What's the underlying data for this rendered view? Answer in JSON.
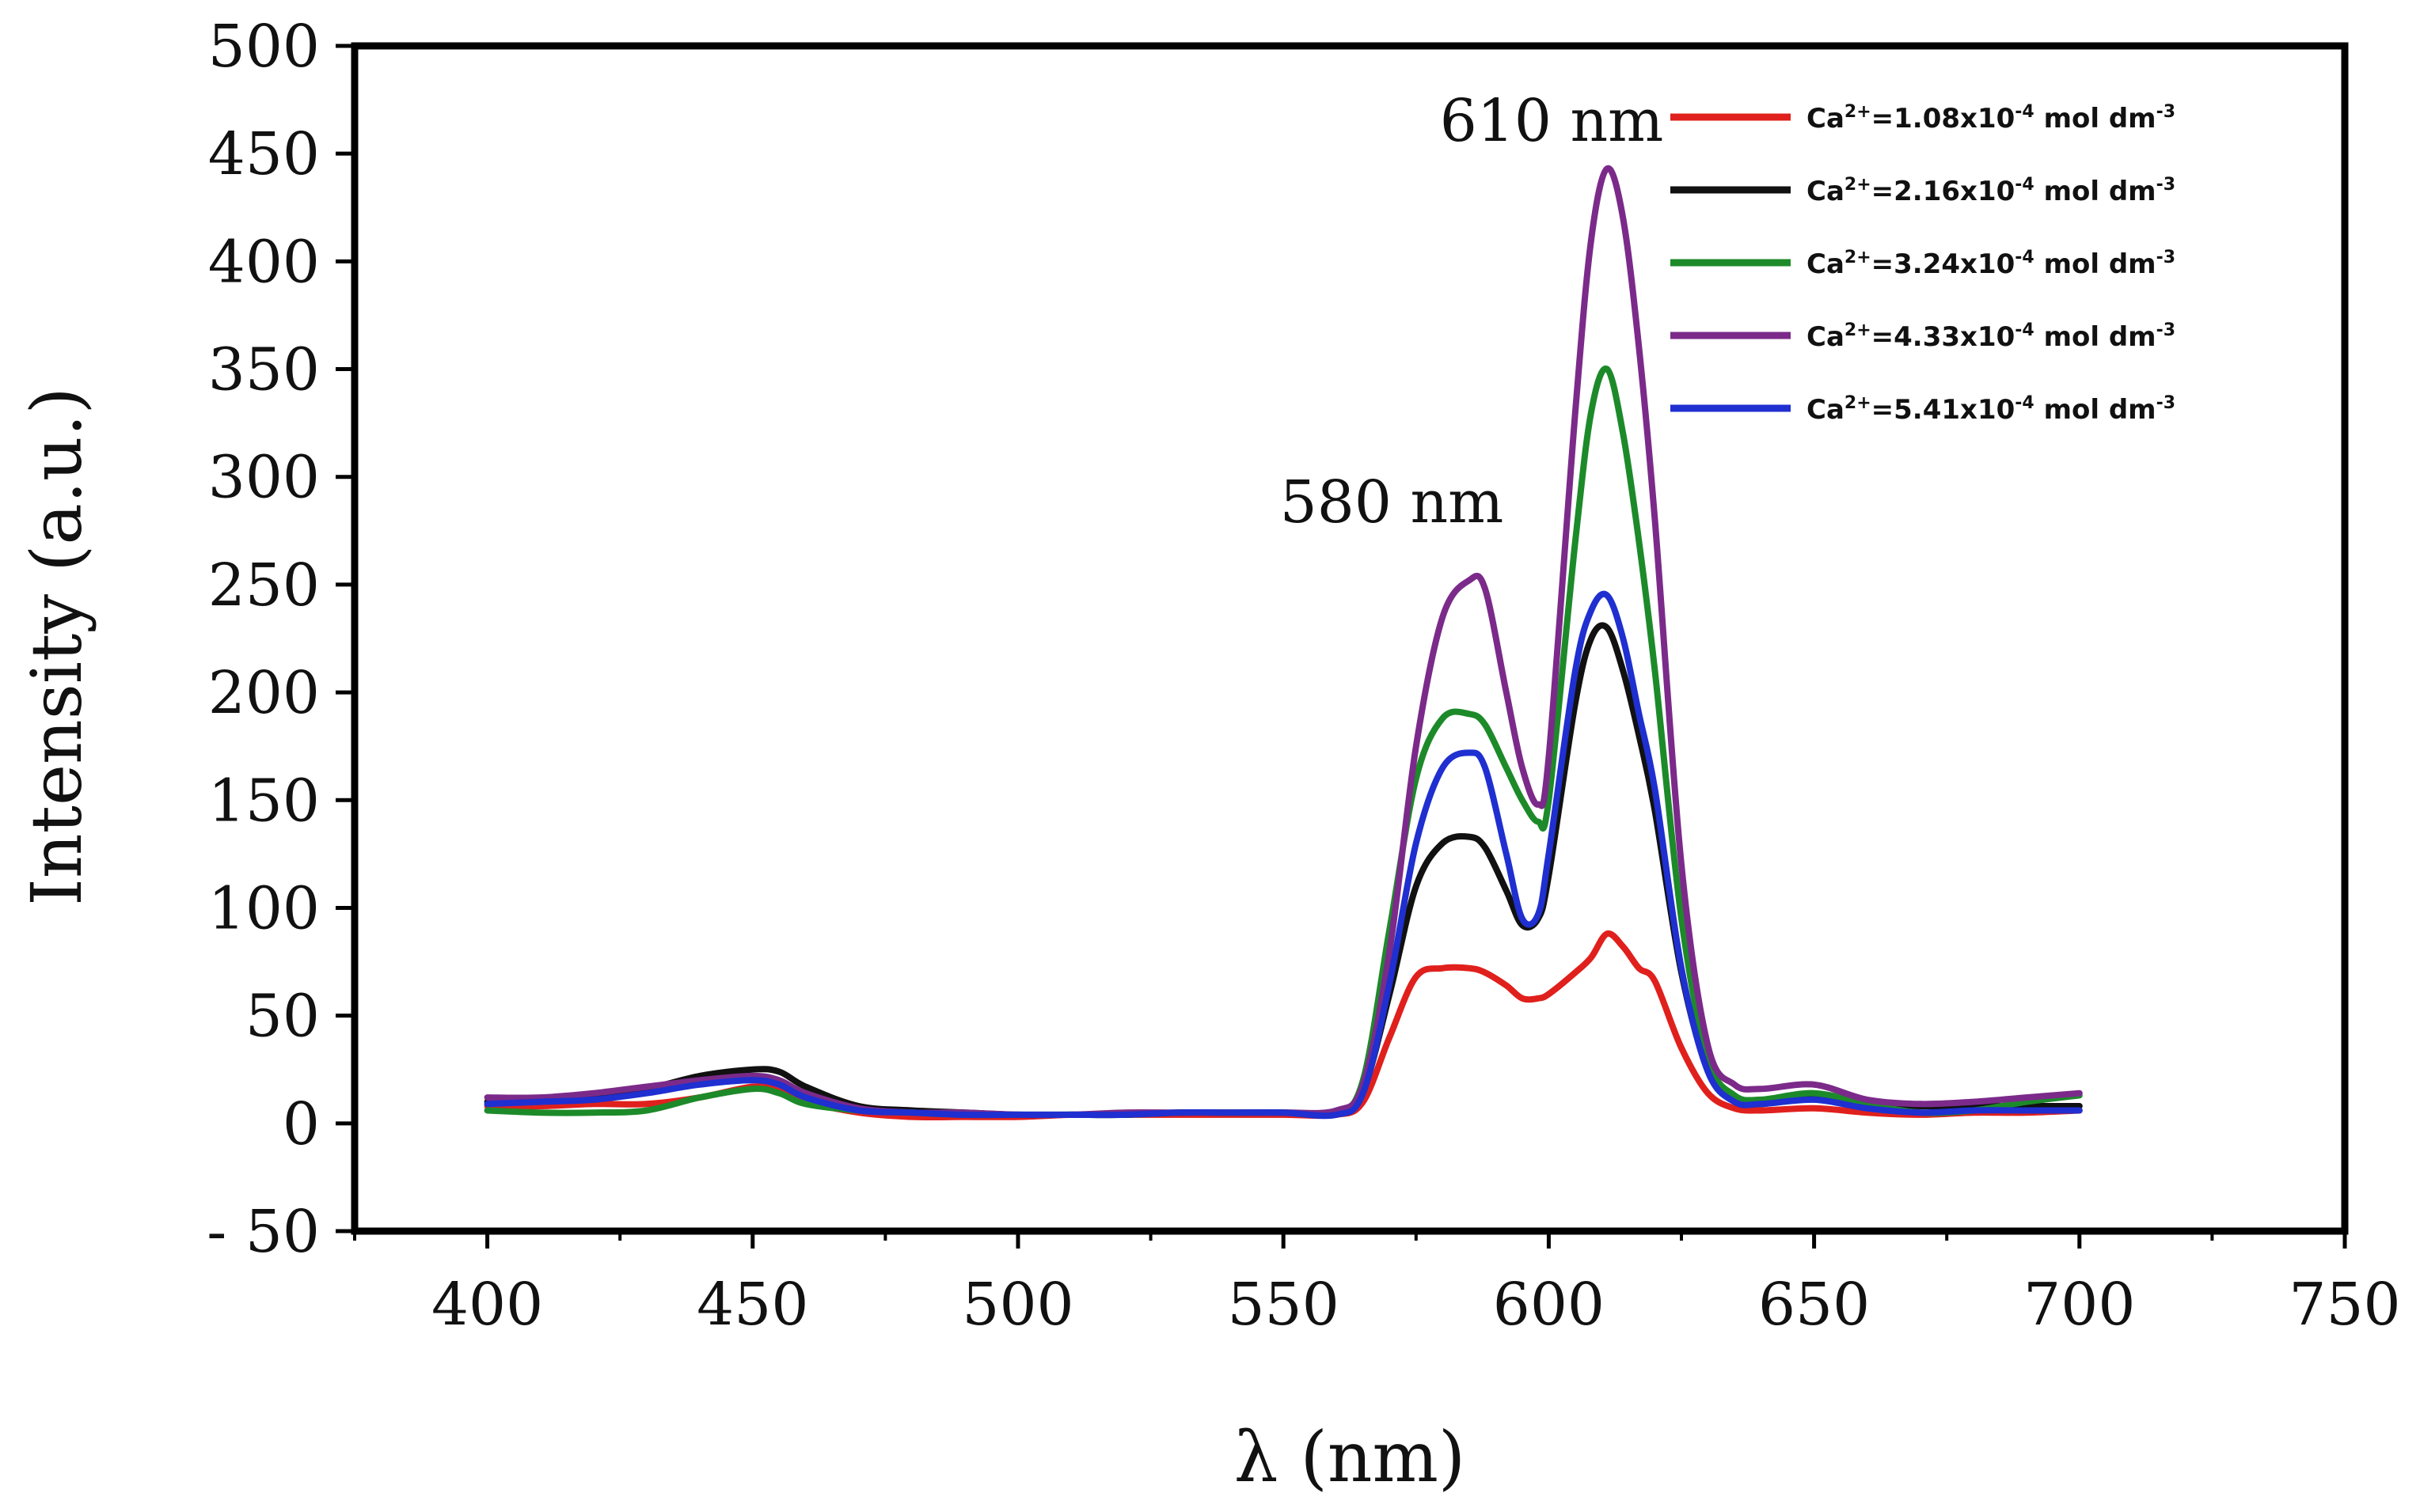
{
  "chart_data": {
    "type": "line",
    "title": "",
    "xlabel": "λ (nm)",
    "ylabel": "Intensity (a.u.)",
    "xlim": [
      375,
      750
    ],
    "ylim": [
      -50,
      500
    ],
    "xticks": [
      400,
      450,
      500,
      550,
      600,
      650,
      700,
      750
    ],
    "yticks": [
      -50,
      0,
      50,
      100,
      150,
      200,
      250,
      300,
      350,
      400,
      450,
      500
    ],
    "ytick_labels": [
      "- 50",
      "0",
      "50",
      "100",
      "150",
      "200",
      "250",
      "300",
      "350",
      "400",
      "450",
      "500"
    ],
    "grid": false,
    "legend_position": "top-right",
    "annotations": [
      {
        "text": "610 nm",
        "x": 610,
        "y": 458
      },
      {
        "text": "580 nm",
        "x": 585,
        "y": 285
      }
    ],
    "x": [
      400,
      410,
      420,
      430,
      440,
      450,
      455,
      460,
      470,
      480,
      490,
      500,
      510,
      520,
      530,
      540,
      550,
      560,
      565,
      570,
      575,
      580,
      585,
      588,
      592,
      595,
      598,
      600,
      605,
      608,
      611,
      614,
      617,
      620,
      625,
      630,
      635,
      640,
      650,
      660,
      670,
      680,
      690,
      700
    ],
    "series": [
      {
        "name": "Ca2+=1.08x10-4 mol dm-3",
        "color": "#e0201c",
        "values": [
          8,
          8,
          9,
          9,
          12,
          17,
          15,
          10,
          5,
          3,
          3,
          3,
          4,
          4,
          4,
          4,
          4,
          4,
          10,
          40,
          68,
          72,
          72,
          70,
          64,
          58,
          58,
          60,
          70,
          77,
          88,
          82,
          72,
          66,
          35,
          14,
          7,
          6,
          7,
          5,
          4,
          5,
          5,
          6
        ]
      },
      {
        "name": "Ca2+=2.16x10-4 mol dm-3",
        "color": "#111111",
        "values": [
          10,
          11,
          13,
          16,
          22,
          25,
          24,
          17,
          8,
          6,
          5,
          4,
          4,
          4,
          5,
          5,
          5,
          5,
          15,
          60,
          110,
          130,
          133,
          128,
          108,
          92,
          95,
          115,
          195,
          225,
          230,
          210,
          180,
          145,
          70,
          25,
          11,
          9,
          12,
          9,
          8,
          8,
          8,
          8
        ]
      },
      {
        "name": "Ca2+=3.24x10-4 mol dm-3",
        "color": "#1d8a2a",
        "values": [
          6,
          5,
          5,
          6,
          12,
          16,
          14,
          9,
          6,
          5,
          4,
          4,
          4,
          4,
          5,
          5,
          5,
          5,
          20,
          90,
          160,
          188,
          190,
          185,
          165,
          150,
          140,
          150,
          270,
          330,
          350,
          320,
          270,
          210,
          95,
          30,
          13,
          11,
          14,
          9,
          5,
          6,
          10,
          13
        ]
      },
      {
        "name": "Ca2+=4.33x10-4 mol dm-3",
        "color": "#7b2a8a",
        "values": [
          12,
          12,
          14,
          17,
          20,
          22,
          20,
          14,
          7,
          5,
          5,
          4,
          4,
          5,
          5,
          5,
          5,
          6,
          18,
          80,
          175,
          235,
          252,
          248,
          200,
          165,
          148,
          170,
          330,
          410,
          443,
          420,
          360,
          280,
          120,
          36,
          18,
          16,
          18,
          11,
          9,
          10,
          12,
          14
        ]
      },
      {
        "name": "Ca2+=5.41x10-4 mol dm-3",
        "color": "#1f2fd0",
        "values": [
          9,
          10,
          11,
          14,
          18,
          20,
          18,
          12,
          6,
          5,
          4,
          4,
          4,
          4,
          5,
          5,
          5,
          4,
          14,
          65,
          130,
          165,
          172,
          165,
          125,
          95,
          97,
          125,
          210,
          238,
          245,
          225,
          190,
          155,
          72,
          24,
          10,
          9,
          11,
          7,
          5,
          6,
          6,
          6
        ]
      }
    ],
    "legend": [
      {
        "prefix": "Ca",
        "sup1": "2+",
        "mid": "=1.08x10",
        "sup2": "-4",
        "suffix": " mol dm",
        "sup3": "-3"
      },
      {
        "prefix": "Ca",
        "sup1": "2+",
        "mid": "=2.16x10",
        "sup2": "-4",
        "suffix": " mol dm",
        "sup3": "-3"
      },
      {
        "prefix": "Ca",
        "sup1": "2+",
        "mid": "=3.24x10",
        "sup2": "-4",
        "suffix": " mol dm",
        "sup3": "-3"
      },
      {
        "prefix": "Ca",
        "sup1": "2+",
        "mid": "=4.33x10",
        "sup2": "-4",
        "suffix": " mol dm",
        "sup3": "-3"
      },
      {
        "prefix": "Ca",
        "sup1": "2+",
        "mid": "=5.41x10",
        "sup2": "-4",
        "suffix": " mol dm",
        "sup3": "-3"
      }
    ]
  }
}
